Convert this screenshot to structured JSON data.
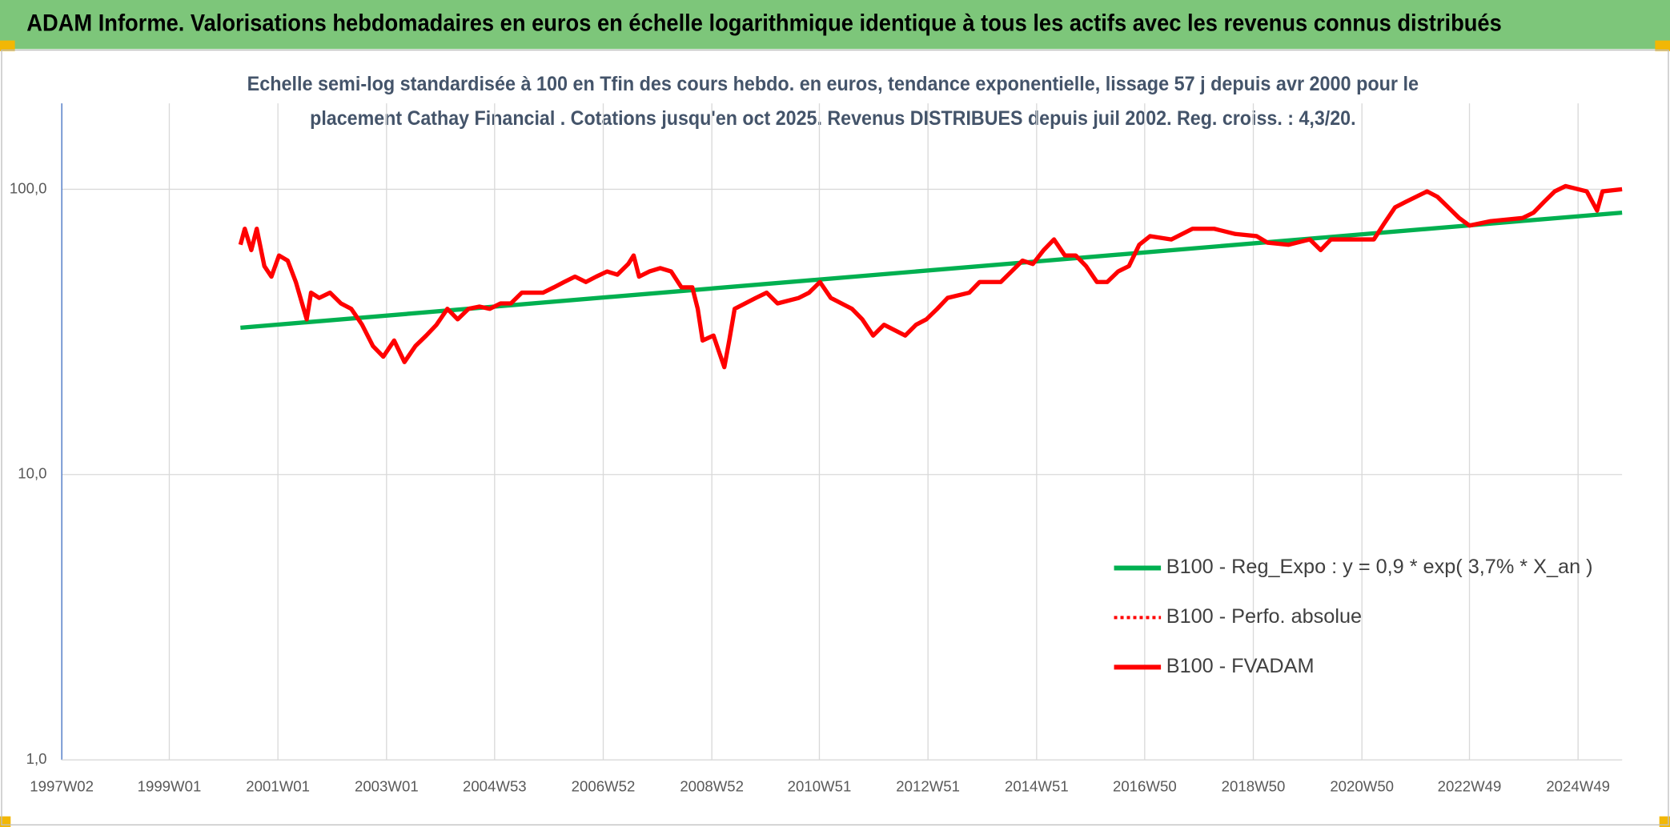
{
  "chart_data": {
    "type": "line",
    "title": "ADAM Informe. Valorisations hebdomadaires en euros en échelle logarithmique identique à tous les actifs avec les revenus connus distribués",
    "subtitle_lines": [
      "Echelle semi-log standardisée à 100 en Tfin des cours hebdo. en euros, tendance exponentielle, lissage 57 j depuis avr 2000 pour le",
      "placement Cathay Financial . Cotations jusqu'en oct 2025. Revenus DISTRIBUES depuis juil 2002. Reg. croiss. : 4,3/20."
    ],
    "log_y": true,
    "grid": true,
    "xlim": [
      1997.02,
      2025.75
    ],
    "xticks": [
      {
        "value": 1997.02,
        "label": "1997W02"
      },
      {
        "value": 1999.0,
        "label": "1999W01"
      },
      {
        "value": 2001.0,
        "label": "2001W01"
      },
      {
        "value": 2003.0,
        "label": "2003W01"
      },
      {
        "value": 2004.99,
        "label": "2004W53"
      },
      {
        "value": 2006.99,
        "label": "2006W52"
      },
      {
        "value": 2008.99,
        "label": "2008W52"
      },
      {
        "value": 2010.97,
        "label": "2010W51"
      },
      {
        "value": 2012.97,
        "label": "2012W51"
      },
      {
        "value": 2014.97,
        "label": "2014W51"
      },
      {
        "value": 2016.96,
        "label": "2016W50"
      },
      {
        "value": 2018.96,
        "label": "2018W50"
      },
      {
        "value": 2020.96,
        "label": "2020W50"
      },
      {
        "value": 2022.94,
        "label": "2022W49"
      },
      {
        "value": 2024.94,
        "label": "2024W49"
      }
    ],
    "ylim": [
      1,
      200
    ],
    "yticks": [
      {
        "value": 1,
        "label": "1,0"
      },
      {
        "value": 10,
        "label": "10,0"
      },
      {
        "value": 100,
        "label": "100,0"
      }
    ],
    "series": [
      {
        "name": "B100 - Reg_Expo : y = 0,9 * exp( 3,7% *  X_an )",
        "color": "#00b050",
        "style": "solid",
        "x": [
          2000.31,
          2025.75
        ],
        "values": [
          32.7,
          82.8
        ]
      },
      {
        "name": "B100 - Perfo. absolue",
        "color": "#ff0000",
        "style": "dotted",
        "x": [],
        "values": []
      },
      {
        "name": "B100 - FVADAM",
        "color": "#ff0000",
        "style": "solid",
        "x": [
          2000.31,
          2000.39,
          2000.51,
          2000.61,
          2000.75,
          2000.88,
          2001.02,
          2001.18,
          2001.33,
          2001.53,
          2001.61,
          2001.76,
          2001.96,
          2002.16,
          2002.35,
          2002.55,
          2002.75,
          2002.94,
          2003.14,
          2003.33,
          2003.53,
          2003.73,
          2003.92,
          2004.12,
          2004.31,
          2004.51,
          2004.71,
          2004.9,
          2005.1,
          2005.29,
          2005.49,
          2005.88,
          2006.08,
          2006.27,
          2006.47,
          2006.67,
          2006.86,
          2007.06,
          2007.25,
          2007.45,
          2007.55,
          2007.65,
          2007.84,
          2008.04,
          2008.24,
          2008.43,
          2008.63,
          2008.73,
          2008.82,
          2009.02,
          2009.12,
          2009.22,
          2009.31,
          2009.41,
          2009.8,
          2010.0,
          2010.2,
          2010.59,
          2010.78,
          2010.98,
          2011.18,
          2011.57,
          2011.76,
          2011.96,
          2012.16,
          2012.55,
          2012.75,
          2012.94,
          2013.14,
          2013.33,
          2013.73,
          2013.92,
          2014.31,
          2014.71,
          2014.9,
          2015.1,
          2015.29,
          2015.49,
          2015.69,
          2015.88,
          2016.08,
          2016.27,
          2016.47,
          2016.67,
          2016.86,
          2017.06,
          2017.45,
          2017.84,
          2018.24,
          2018.63,
          2019.02,
          2019.22,
          2019.61,
          2020.0,
          2020.2,
          2020.39,
          2020.98,
          2021.18,
          2021.37,
          2021.57,
          2021.76,
          2022.16,
          2022.35,
          2022.55,
          2022.75,
          2022.94,
          2023.33,
          2023.92,
          2024.12,
          2024.31,
          2024.51,
          2024.71,
          2025.1,
          2025.29,
          2025.39,
          2025.75
        ],
        "values": [
          63.9,
          72.7,
          61.2,
          72.7,
          53.8,
          49.4,
          58.6,
          56.2,
          47.3,
          35.0,
          43.4,
          41.6,
          43.4,
          39.8,
          38.1,
          33.5,
          28.2,
          25.9,
          29.5,
          24.8,
          28.2,
          30.7,
          33.5,
          38.1,
          35.0,
          38.1,
          38.8,
          38.1,
          39.8,
          39.8,
          43.4,
          43.4,
          45.3,
          47.3,
          49.4,
          47.3,
          49.4,
          51.5,
          50.2,
          54.7,
          58.6,
          49.4,
          51.5,
          52.9,
          51.5,
          45.3,
          45.3,
          38.1,
          29.5,
          30.7,
          27.0,
          23.8,
          29.5,
          38.1,
          41.6,
          43.4,
          39.8,
          41.6,
          43.4,
          47.3,
          41.6,
          38.1,
          35.0,
          30.7,
          33.5,
          30.7,
          33.5,
          35.0,
          38.1,
          41.6,
          43.4,
          47.3,
          47.3,
          56.2,
          54.7,
          61.2,
          66.7,
          58.6,
          58.6,
          53.8,
          47.3,
          47.3,
          51.5,
          53.8,
          63.9,
          68.5,
          66.7,
          72.7,
          72.7,
          69.7,
          68.5,
          65.0,
          63.9,
          66.7,
          61.2,
          66.7,
          66.7,
          66.7,
          75.9,
          86.4,
          90.2,
          98.3,
          94.1,
          86.4,
          79.3,
          74.6,
          77.3,
          79.3,
          82.8,
          90.2,
          98.3,
          102.6,
          98.3,
          84.2,
          98.3,
          100.0
        ]
      }
    ]
  }
}
